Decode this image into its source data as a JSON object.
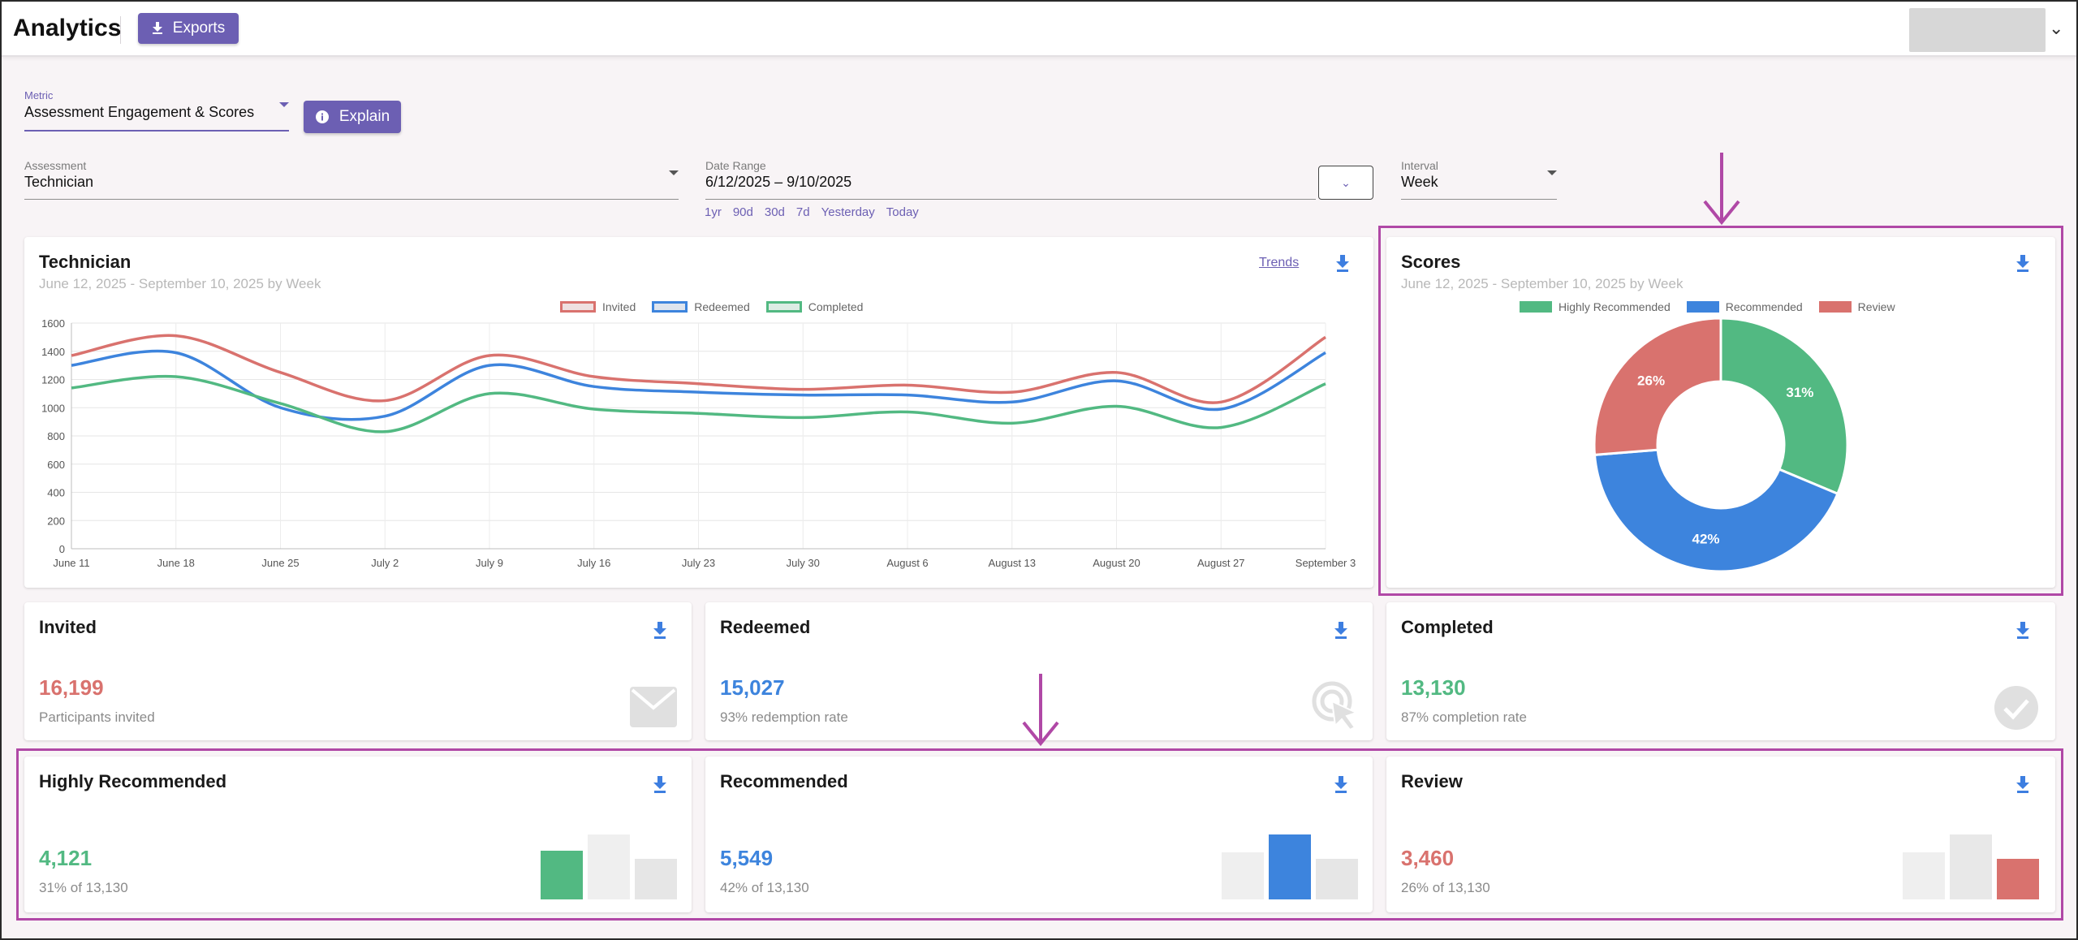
{
  "header": {
    "app_title": "Analytics",
    "exports_label": "Exports"
  },
  "filters": {
    "metric_label": "Metric",
    "metric_value": "Assessment Engagement & Scores",
    "explain_label": "Explain",
    "assessment_label": "Assessment",
    "assessment_value": "Technician",
    "date_range_label": "Date Range",
    "date_range_value": "6/12/2025 – 9/10/2025",
    "interval_label": "Interval",
    "interval_value": "Week",
    "quick_ranges": [
      "1yr",
      "90d",
      "30d",
      "7d",
      "Yesterday",
      "Today"
    ]
  },
  "line_card": {
    "title": "Technician",
    "subtitle": "June 12, 2025 - September 10, 2025 by Week",
    "trends_label": "Trends"
  },
  "scores_card": {
    "title": "Scores",
    "subtitle": "June 12, 2025 - September 10, 2025 by Week"
  },
  "stats": {
    "invited": {
      "title": "Invited",
      "value": "16,199",
      "sub": "Participants invited"
    },
    "redeemed": {
      "title": "Redeemed",
      "value": "15,027",
      "sub": "93% redemption rate"
    },
    "completed": {
      "title": "Completed",
      "value": "13,130",
      "sub": "87% completion rate"
    },
    "highly": {
      "title": "Highly Recommended",
      "value": "4,121",
      "sub": "31% of 13,130"
    },
    "recommended": {
      "title": "Recommended",
      "value": "5,549",
      "sub": "42% of 13,130"
    },
    "review": {
      "title": "Review",
      "value": "3,460",
      "sub": "26% of 13,130"
    }
  },
  "colors": {
    "invited": "#d9726e",
    "redeemed": "#3d84dd",
    "completed": "#52b982",
    "accent": "#6c5fb3",
    "highlight": "#b048a6"
  },
  "chart_data": [
    {
      "type": "line",
      "title": "",
      "x": [
        "June 11",
        "June 18",
        "June 25",
        "July 2",
        "July 9",
        "July 16",
        "July 23",
        "July 30",
        "August 6",
        "August 13",
        "August 20",
        "August 27",
        "September 3"
      ],
      "ylim": [
        0,
        1600
      ],
      "yticks": [
        0,
        200,
        400,
        600,
        800,
        1000,
        1200,
        1400,
        1600
      ],
      "grid": true,
      "legend": "top",
      "series": [
        {
          "name": "Invited",
          "color": "#d9726e",
          "values": [
            1370,
            1510,
            1250,
            1050,
            1370,
            1220,
            1170,
            1130,
            1160,
            1110,
            1250,
            1040,
            1500
          ]
        },
        {
          "name": "Redeemed",
          "color": "#3d84dd",
          "values": [
            1300,
            1390,
            1000,
            940,
            1300,
            1150,
            1110,
            1090,
            1090,
            1040,
            1190,
            990,
            1390
          ]
        },
        {
          "name": "Completed",
          "color": "#52b982",
          "values": [
            1140,
            1220,
            1030,
            830,
            1100,
            990,
            960,
            930,
            970,
            890,
            1010,
            860,
            1170
          ]
        }
      ]
    },
    {
      "type": "pie",
      "title": "",
      "legend": "top",
      "categories": [
        "Highly Recommended",
        "Recommended",
        "Review"
      ],
      "values": [
        31,
        42,
        26
      ],
      "labels": [
        "31%",
        "42%",
        "26%"
      ],
      "colors": [
        "#52b982",
        "#3d84dd",
        "#d9726e"
      ]
    }
  ]
}
